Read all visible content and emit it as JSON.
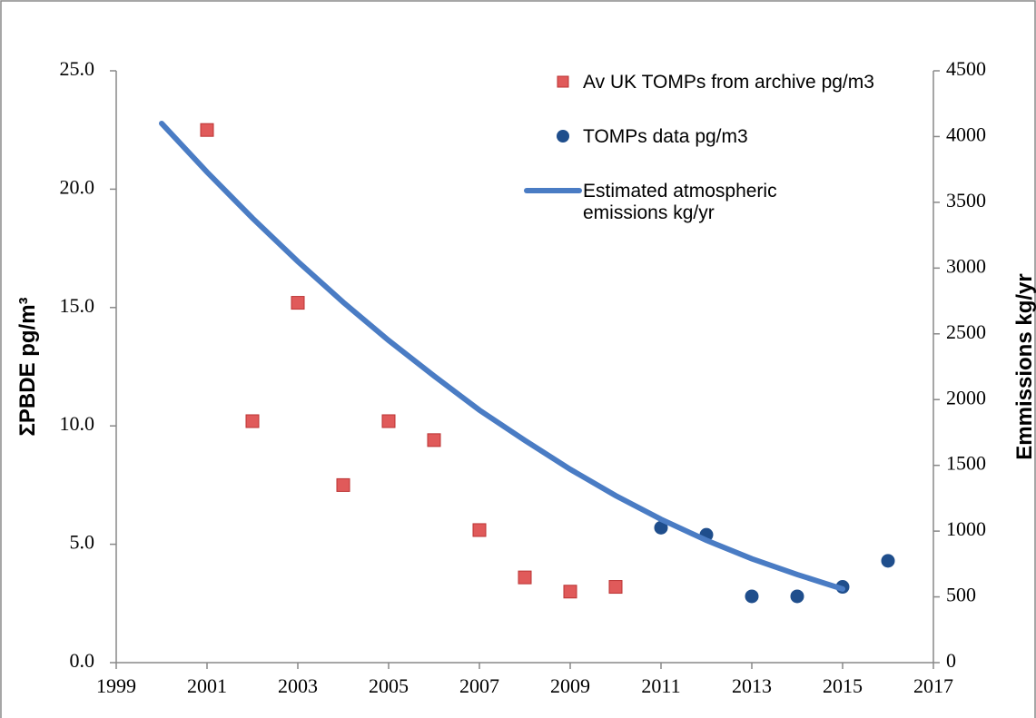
{
  "chart_data": {
    "type": "combo",
    "y_label": "ΣPBDE pg/m³",
    "y2_label": "Emmissions kg/yr",
    "xlim": [
      1999,
      2017
    ],
    "xticks": [
      1999,
      2001,
      2003,
      2005,
      2007,
      2009,
      2011,
      2013,
      2015,
      2017
    ],
    "ylim": [
      0,
      25
    ],
    "yticks": [
      {
        "value": 0,
        "label": "0.0"
      },
      {
        "value": 5,
        "label": "5.0"
      },
      {
        "value": 10,
        "label": "10.0"
      },
      {
        "value": 15,
        "label": "15.0"
      },
      {
        "value": 20,
        "label": "20.0"
      },
      {
        "value": 25,
        "label": "25.0"
      }
    ],
    "y2lim": [
      0,
      4500
    ],
    "y2ticks": [
      0,
      500,
      1000,
      1500,
      2000,
      2500,
      3000,
      3500,
      4000,
      4500
    ],
    "legend": "top-right",
    "series": [
      {
        "name": "Av UK TOMPs from archive pg/m3",
        "kind": "square",
        "color": "#e05a5a",
        "x": [
          2001,
          2002,
          2003,
          2004,
          2005,
          2006,
          2007,
          2008,
          2009,
          2010
        ],
        "values": [
          22.5,
          10.2,
          15.2,
          7.5,
          10.2,
          9.4,
          5.6,
          3.6,
          3.0,
          3.2
        ]
      },
      {
        "name": "TOMPs data pg/m3",
        "kind": "circle",
        "color": "#1f4e8c",
        "x": [
          2011,
          2012,
          2013,
          2014,
          2015,
          2016
        ],
        "values": [
          5.7,
          5.4,
          2.8,
          2.8,
          3.2,
          4.3
        ]
      },
      {
        "name": "Estimated atmospheric emissions kg/yr",
        "kind": "line",
        "color": "#4a7cc4",
        "axis": "y2",
        "x": [
          2000,
          2001,
          2002,
          2003,
          2004,
          2005,
          2006,
          2007,
          2008,
          2009,
          2010,
          2011,
          2012,
          2013,
          2014,
          2015
        ],
        "values": [
          4100,
          3730,
          3380,
          3050,
          2740,
          2450,
          2180,
          1920,
          1690,
          1470,
          1270,
          1090,
          930,
          790,
          670,
          560
        ]
      }
    ]
  }
}
